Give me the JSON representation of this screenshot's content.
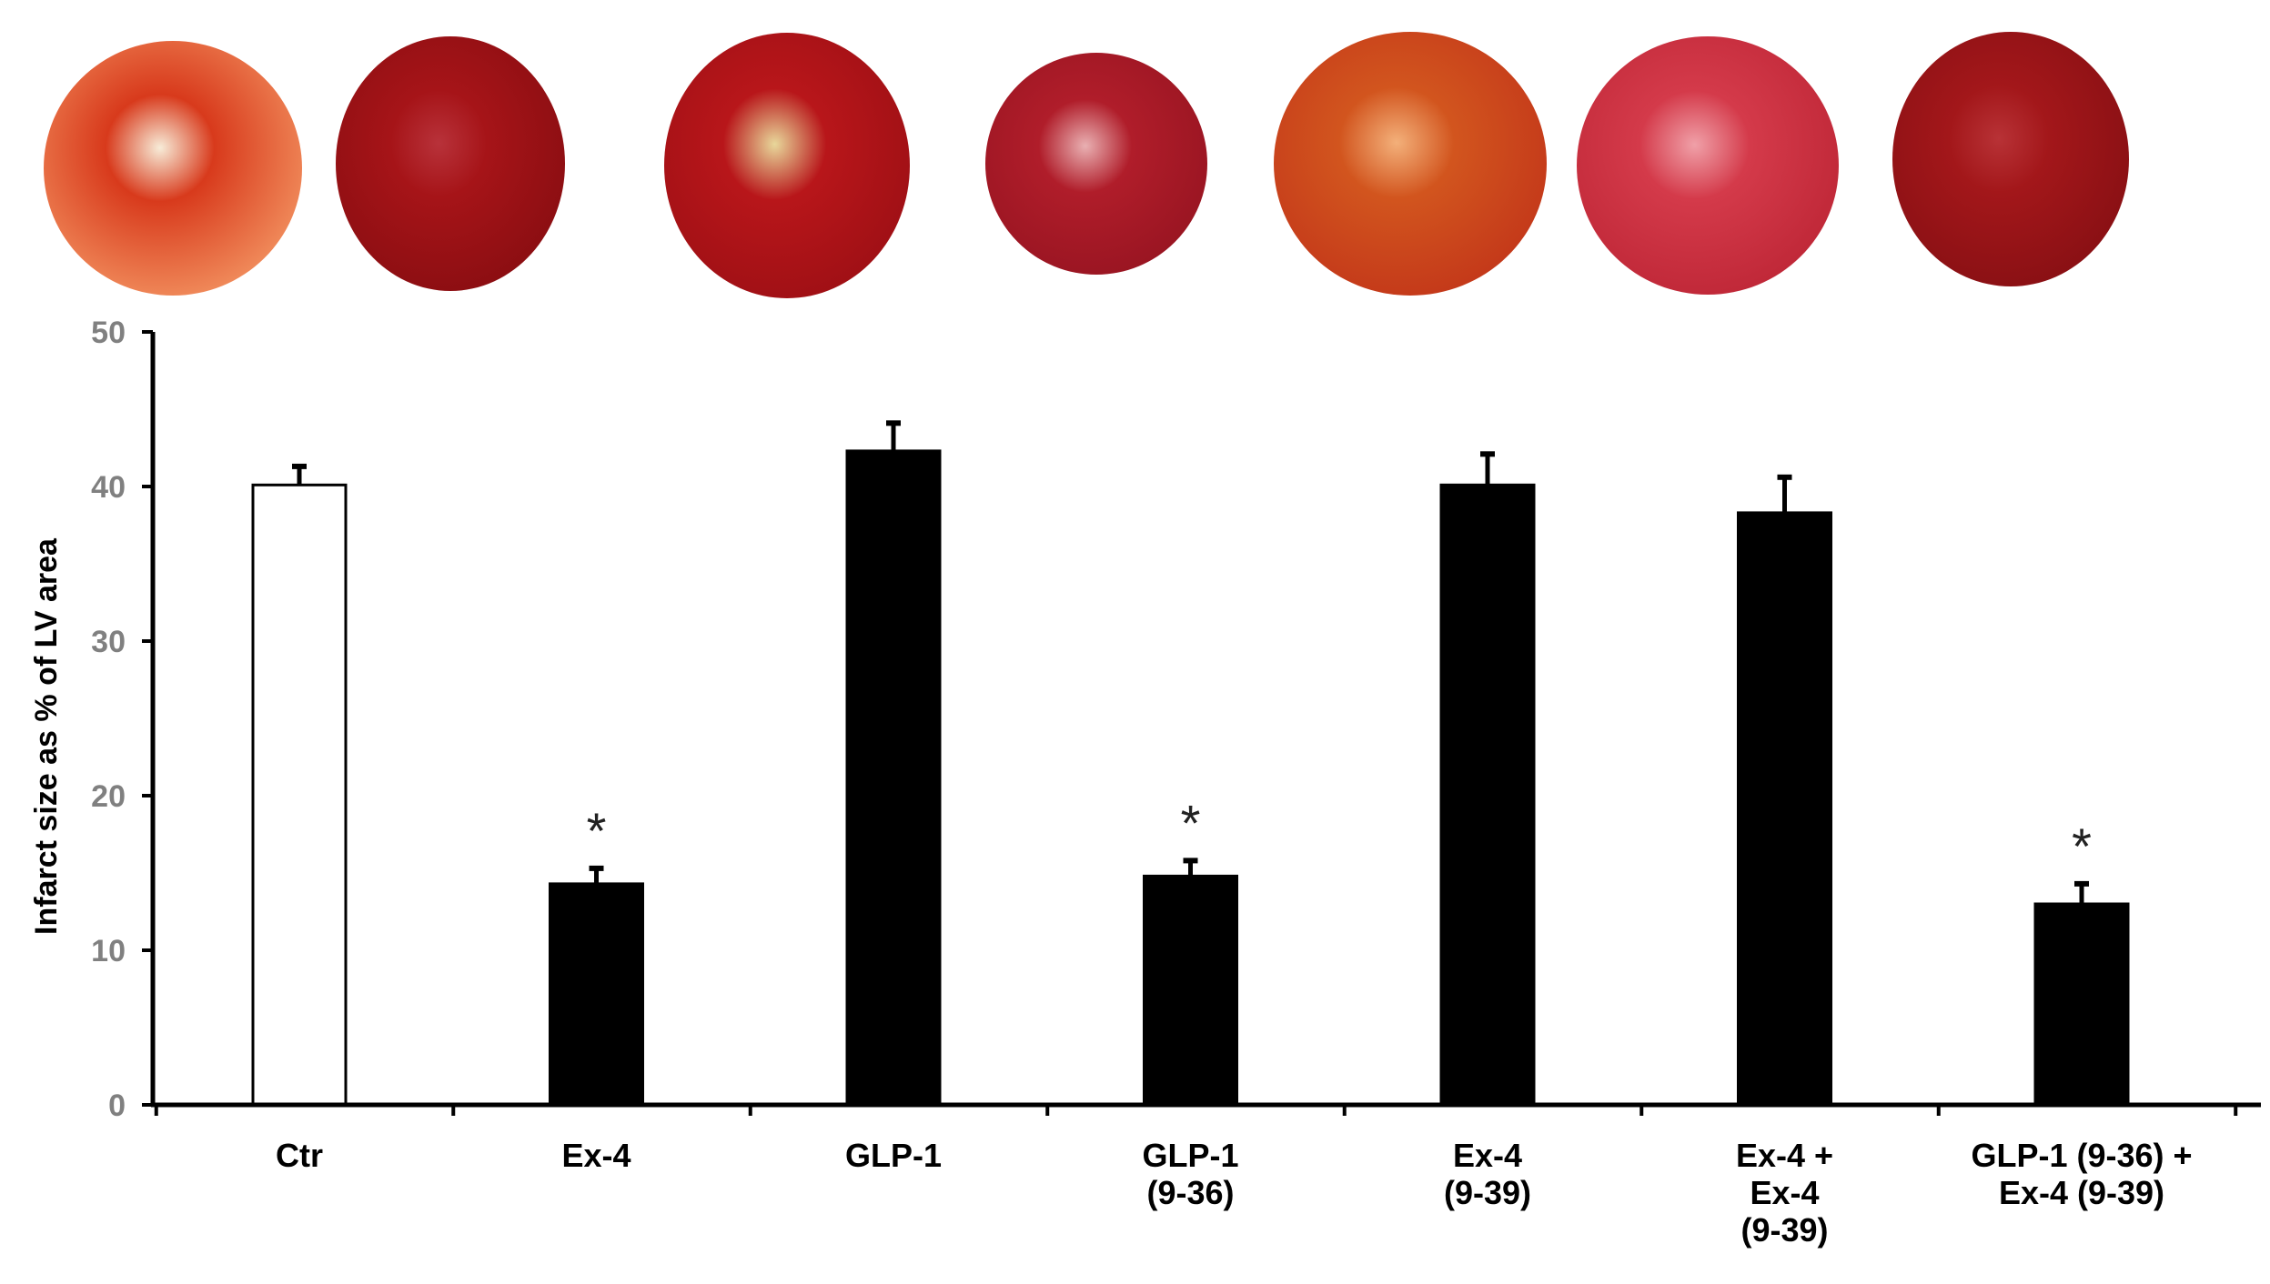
{
  "chart_data": {
    "type": "bar",
    "ylabel": "Infarct size as % of LV area",
    "ylim": [
      0,
      50
    ],
    "yticks": [
      0,
      10,
      20,
      30,
      40,
      50
    ],
    "grid": false,
    "categories": [
      [
        "Ctr"
      ],
      [
        "Ex-4"
      ],
      [
        "GLP-1"
      ],
      [
        "GLP-1",
        "(9-36)"
      ],
      [
        "Ex-4",
        "(9-39)"
      ],
      [
        "Ex-4 +",
        "Ex-4",
        "(9-39)"
      ],
      [
        "GLP-1 (9-36) +",
        "Ex-4 (9-39)"
      ]
    ],
    "values": [
      40.1,
      14.3,
      42.3,
      14.8,
      40.1,
      38.3,
      13.0
    ],
    "errors": [
      1.2,
      1.0,
      1.8,
      1.0,
      2.0,
      2.3,
      1.3
    ],
    "significance": [
      "",
      "*",
      "",
      "*",
      "",
      "",
      "*"
    ],
    "bar_fills": [
      "#ffffff",
      "#000000",
      "#000000",
      "#000000",
      "#000000",
      "#000000",
      "#000000"
    ],
    "heart_images": [
      {
        "name": "heart-slice-ctr",
        "base": "#d83a1c",
        "core": "#f7ecd8",
        "rim": "#f08a5a"
      },
      {
        "name": "heart-slice-ex4",
        "base": "#a61418",
        "core": "#b8323a",
        "rim": "#8c0e12"
      },
      {
        "name": "heart-slice-glp1",
        "base": "#b8161a",
        "core": "#e8d79a",
        "rim": "#a01015"
      },
      {
        "name": "heart-slice-glp1-9-36",
        "base": "#b01d2a",
        "core": "#e9b0b2",
        "rim": "#9a1522"
      },
      {
        "name": "heart-slice-ex4-9-39",
        "base": "#d2551e",
        "core": "#f3b07a",
        "rim": "#c4391a"
      },
      {
        "name": "heart-slice-ex4-plus-ex4-9-39",
        "base": "#d43a4a",
        "core": "#f0a0a8",
        "rim": "#c02838"
      },
      {
        "name": "heart-slice-glp1-9-36-plus-ex4-9-39",
        "base": "#a3171a",
        "core": "#b83236",
        "rim": "#8a1014"
      }
    ]
  }
}
